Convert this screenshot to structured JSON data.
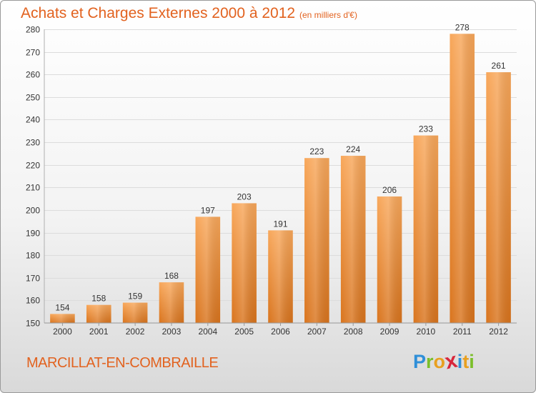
{
  "title": "Achats et Charges Externes 2000 à 2012",
  "subtitle": "(en milliers d'€)",
  "commune": "MARCILLAT-EN-COMBRAILLE",
  "logo": {
    "letters": [
      "P",
      "r",
      "o",
      "x",
      "i",
      "t",
      "i"
    ],
    "colors": [
      "#2f8fd8",
      "#7bbf2a",
      "#e8a020",
      "#d8263b",
      "#2f8fd8",
      "#e8a020",
      "#7bbf2a"
    ]
  },
  "chart_data": {
    "type": "bar",
    "categories": [
      "2000",
      "2001",
      "2002",
      "2003",
      "2004",
      "2005",
      "2006",
      "2007",
      "2008",
      "2009",
      "2010",
      "2011",
      "2012"
    ],
    "values": [
      154,
      158,
      159,
      168,
      197,
      203,
      191,
      223,
      224,
      206,
      233,
      278,
      261
    ],
    "title": "Achats et Charges Externes 2000 à 2012",
    "subtitle": "(en milliers d'€)",
    "xlabel": "",
    "ylabel": "",
    "ylim": [
      150,
      280
    ],
    "yticks": [
      150,
      160,
      170,
      180,
      190,
      200,
      210,
      220,
      230,
      240,
      250,
      260,
      270,
      280
    ],
    "grid": true,
    "bar_color": "#f0923a",
    "data_labels": true
  }
}
